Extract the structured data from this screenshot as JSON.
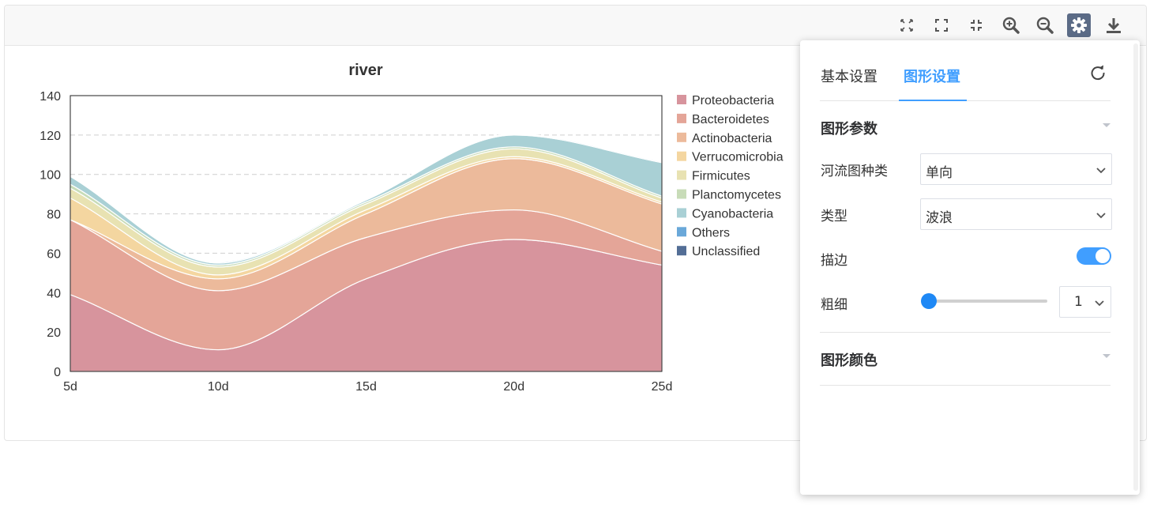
{
  "toolbar": {
    "buttons": [
      {
        "name": "fit-view-button",
        "icon": "fit-arrows-icon"
      },
      {
        "name": "fullscreen-button",
        "icon": "expand-corners-icon"
      },
      {
        "name": "exit-fullscreen-button",
        "icon": "compress-corners-icon"
      },
      {
        "name": "zoom-in-button",
        "icon": "zoom-in-icon"
      },
      {
        "name": "zoom-out-button",
        "icon": "zoom-out-icon"
      },
      {
        "name": "settings-button",
        "icon": "gear-icon",
        "active": true
      },
      {
        "name": "download-button",
        "icon": "download-icon"
      }
    ]
  },
  "panel": {
    "tabs": [
      {
        "label": "基本设置"
      },
      {
        "label": "图形设置"
      }
    ],
    "active_tab": 1,
    "section_params": "图形参数",
    "river_type_label": "河流图种类",
    "river_type_value": "单向",
    "type_label": "类型",
    "type_value": "波浪",
    "stroke_label": "描边",
    "stroke_on": true,
    "thickness_label": "粗细",
    "thickness_value": "1",
    "section_colors": "图形颜色"
  },
  "colors": {
    "accent": "#409eff",
    "toolbar_active": "#5b6b86"
  },
  "chart_data": {
    "type": "area",
    "subtype": "stacked-streamgraph",
    "title": "river",
    "x": [
      "5d",
      "10d",
      "15d",
      "20d",
      "25d"
    ],
    "ylim": [
      0,
      140
    ],
    "yticks": [
      0,
      20,
      40,
      60,
      80,
      100,
      120,
      140
    ],
    "grid": true,
    "legend_position": "right",
    "series": [
      {
        "name": "Proteobacteria",
        "color": "#d7949d",
        "values": [
          39,
          11,
          47,
          67,
          54
        ]
      },
      {
        "name": "Bacteroidetes",
        "color": "#e4a598",
        "values": [
          38,
          30,
          21,
          15,
          7
        ]
      },
      {
        "name": "Actinobacteria",
        "color": "#ecba9b",
        "values": [
          0,
          6,
          12,
          26,
          24
        ]
      },
      {
        "name": "Verrucomicrobia",
        "color": "#f4d6a0",
        "values": [
          11,
          2,
          2,
          1,
          1
        ]
      },
      {
        "name": "Firmicutes",
        "color": "#e8e2b2",
        "values": [
          5,
          4,
          3,
          4,
          2
        ]
      },
      {
        "name": "Planctomycetes",
        "color": "#c8dcb8",
        "values": [
          2,
          1,
          1,
          1,
          1
        ]
      },
      {
        "name": "Cyanobacteria",
        "color": "#a9d0d5",
        "values": [
          4,
          1,
          1,
          6,
          17
        ]
      },
      {
        "name": "Others",
        "color": "#6aa8d9",
        "values": [
          0.5,
          0.5,
          0.5,
          0.5,
          0.5
        ]
      },
      {
        "name": "Unclassified",
        "color": "#536e96",
        "values": [
          0,
          0,
          0,
          0,
          0
        ]
      }
    ]
  }
}
